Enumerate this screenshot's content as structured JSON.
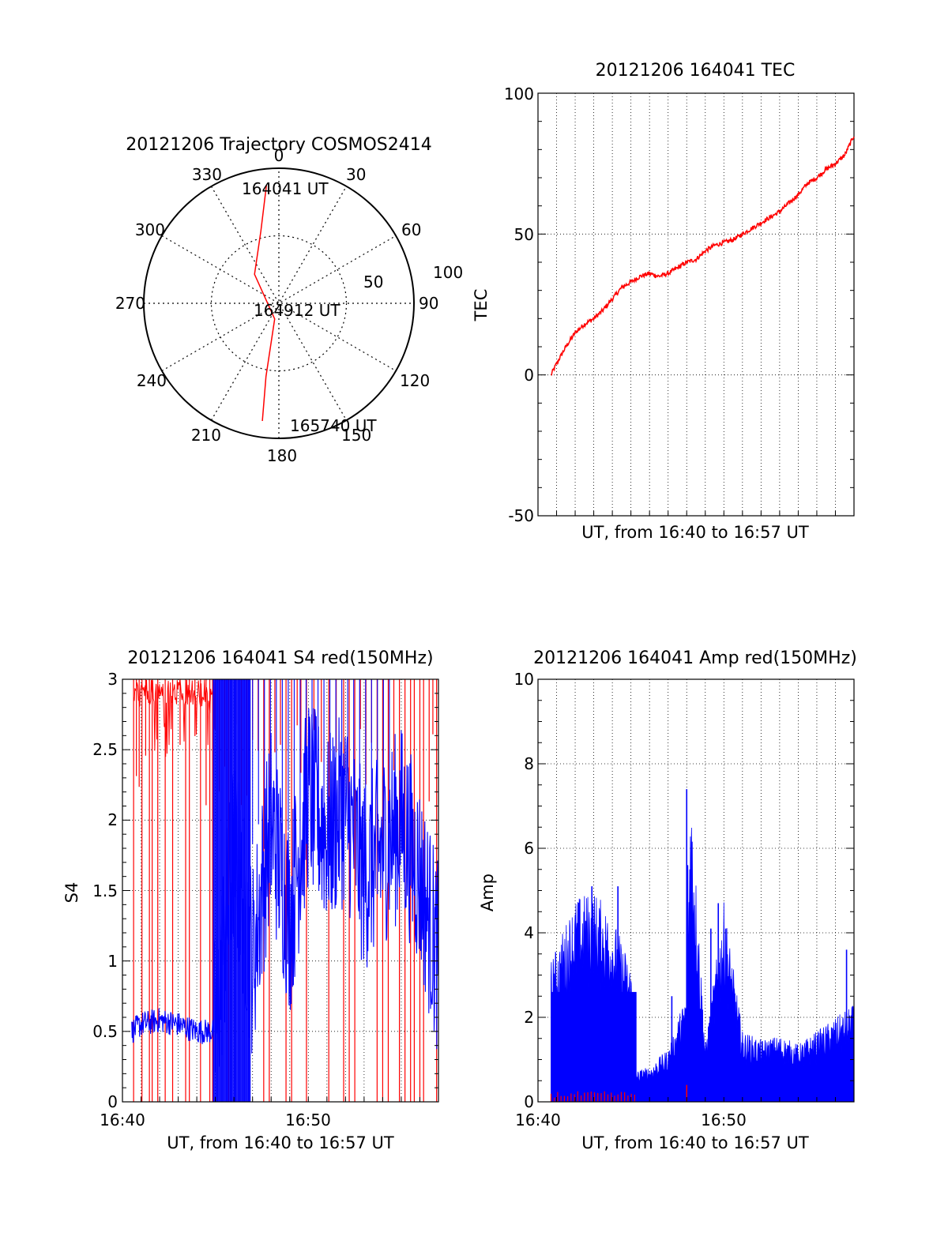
{
  "colors": {
    "red": "#ff0000",
    "blue": "#0000ff",
    "axis": "#000000",
    "grid": "#000000"
  },
  "polar": {
    "title": "20121206 Trajectory COSMOS2414",
    "azimuth_labels": [
      "0",
      "30",
      "60",
      "90",
      "120",
      "150",
      "180",
      "210",
      "240",
      "270",
      "300",
      "330"
    ],
    "radius_labels": [
      "50",
      "100"
    ],
    "point_labels": [
      "164041 UT",
      "164912 UT",
      "165740 UT"
    ]
  },
  "tec": {
    "title": "20121206 164041 TEC",
    "ylabel": "TEC",
    "xlabel": "UT, from 16:40 to 16:57 UT",
    "yticks": [
      "-50",
      "0",
      "50",
      "100"
    ]
  },
  "s4": {
    "title": "20121206 164041 S4 red(150MHz)",
    "ylabel": "S4",
    "xlabel": "UT, from 16:40 to 16:57 UT",
    "yticks": [
      "0",
      "0.5",
      "1",
      "1.5",
      "2",
      "2.5",
      "3"
    ],
    "xticks": [
      "16:40",
      "16:50"
    ]
  },
  "amp": {
    "title": "20121206 164041 Amp red(150MHz)",
    "ylabel": "Amp",
    "xlabel": "UT, from 16:40 to 16:57 UT",
    "yticks": [
      "0",
      "2",
      "4",
      "6",
      "8",
      "10"
    ],
    "xticks": [
      "16:40",
      "16:50"
    ]
  },
  "chart_data": [
    {
      "type": "scatter",
      "name": "polar-trajectory",
      "title": "20121206 Trajectory COSMOS2414",
      "projection": "polar",
      "theta_direction": "clockwise",
      "theta_zero": "top",
      "rlim": [
        0,
        100
      ],
      "grid": true,
      "track_points": [
        {
          "az": 354,
          "zenith_dist": 88,
          "label": "164041 UT"
        },
        {
          "az": 346,
          "zenith_dist": 55
        },
        {
          "az": 320,
          "zenith_dist": 28
        },
        {
          "az": 195,
          "zenith_dist": 12
        },
        {
          "az": 190,
          "zenith_dist": 55
        },
        {
          "az": 188,
          "zenith_dist": 88
        },
        {
          "label": "164912 UT"
        },
        {
          "label": "165740 UT"
        }
      ]
    },
    {
      "type": "line",
      "name": "tec",
      "title": "20121206 164041 TEC",
      "xlabel": "UT, from 16:40 to 16:57 UT",
      "ylabel": "TEC",
      "xlim_min": [
        16.6667,
        16.95
      ],
      "ylim": [
        -50,
        100
      ],
      "grid": true,
      "series": [
        {
          "x_min": [
            0.7,
            1,
            1.5,
            2,
            2.5,
            3,
            3.5,
            4,
            4.5,
            5,
            5.5,
            6,
            6.5,
            7,
            7.5,
            8,
            8.5,
            9,
            9.5,
            10,
            10.5,
            11,
            11.5,
            12,
            12.5,
            13,
            13.5,
            14,
            14.5,
            15,
            15.5,
            16,
            16.5,
            17
          ],
          "y": [
            0,
            4,
            10,
            15,
            18,
            20,
            23,
            27,
            31,
            33,
            35,
            36,
            35,
            36,
            38,
            40,
            41,
            44,
            46,
            47,
            48,
            50,
            52,
            54,
            56,
            58,
            61,
            64,
            68,
            70,
            73,
            75,
            78,
            85
          ]
        }
      ]
    },
    {
      "type": "line",
      "name": "s4",
      "title": "20121206 164041 S4 red(150MHz)",
      "xlabel": "UT, from 16:40 to 16:57 UT",
      "ylabel": "S4",
      "xticks": [
        "16:40",
        "16:50"
      ],
      "ylim": [
        0,
        3
      ],
      "grid": true,
      "series": [
        {
          "color": "blue",
          "x_min": [
            0.5,
            1,
            2,
            3,
            4,
            5,
            6,
            7,
            8,
            9,
            10,
            11,
            12,
            13,
            14,
            15,
            16,
            17
          ],
          "y": [
            0.5,
            0.55,
            0.58,
            0.55,
            0.5,
            0.5,
            1.8,
            1.0,
            2.0,
            1.3,
            2.2,
            1.9,
            2.1,
            1.6,
            1.8,
            2.0,
            1.6,
            1.0
          ]
        },
        {
          "color": "red",
          "note_values": "spikes between 0 and 3 throughout"
        }
      ]
    },
    {
      "type": "bar",
      "name": "amp",
      "title": "20121206 164041 Amp red(150MHz)",
      "xlabel": "UT, from 16:40 to 16:57 UT",
      "ylabel": "Amp",
      "xticks": [
        "16:40",
        "16:50"
      ],
      "ylim": [
        0,
        10
      ],
      "grid": true,
      "series": [
        {
          "color": "blue",
          "x_min": [
            0.7,
            1,
            2,
            3,
            4,
            5,
            5.3,
            6,
            7,
            8,
            8.2,
            9,
            10,
            11,
            12,
            13,
            14,
            15,
            16,
            17
          ],
          "y": [
            3.2,
            3.5,
            4.6,
            4.8,
            4.2,
            3.1,
            0.7,
            0.8,
            1.2,
            2.5,
            7.4,
            1.3,
            4.5,
            1.6,
            1.4,
            1.5,
            1.3,
            1.6,
            1.9,
            2.2
          ]
        },
        {
          "color": "red",
          "x_min": [
            0.7,
            5.3,
            8.0
          ],
          "y": [
            0.15,
            0.15,
            0.4
          ]
        }
      ]
    }
  ]
}
